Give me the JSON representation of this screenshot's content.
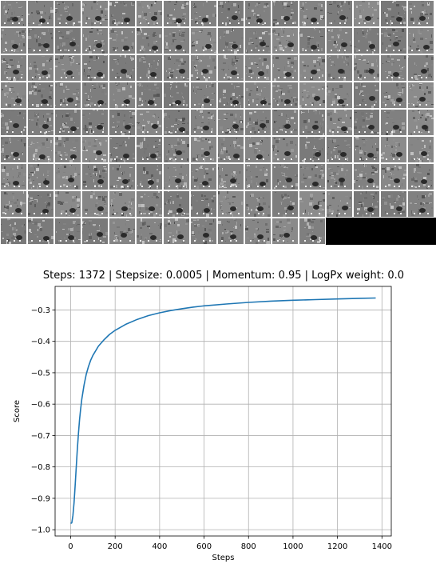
{
  "tile_grid": {
    "columns": 16,
    "rows": 9,
    "tile_count": 140,
    "tile_description": "grayscale textured image tiles"
  },
  "chart_data": {
    "type": "line",
    "title": "Steps: 1372 | Stepsize: 0.0005 | Momentum: 0.95 | LogPx weight: 0.0",
    "xlabel": "Steps",
    "ylabel": "Score",
    "xlim": [
      -70,
      1442
    ],
    "ylim": [
      -1.02,
      -0.225
    ],
    "x_ticks": [
      0,
      200,
      400,
      600,
      800,
      1000,
      1200,
      1400
    ],
    "y_ticks": [
      -1.0,
      -0.9,
      -0.8,
      -0.7,
      -0.6,
      -0.5,
      -0.4,
      -0.3
    ],
    "x_tick_labels": [
      "0",
      "200",
      "400",
      "600",
      "800",
      "1000",
      "1200",
      "1400"
    ],
    "y_tick_labels": [
      "−1.0",
      "−0.9",
      "−0.8",
      "−0.7",
      "−0.6",
      "−0.5",
      "−0.4",
      "−0.3"
    ],
    "grid": true,
    "series": [
      {
        "color": "#1f77b4",
        "x": [
          0,
          5,
          10,
          15,
          20,
          25,
          30,
          35,
          40,
          45,
          50,
          60,
          70,
          80,
          90,
          100,
          125,
          150,
          175,
          200,
          250,
          300,
          350,
          400,
          450,
          500,
          550,
          600,
          700,
          800,
          900,
          1000,
          1100,
          1200,
          1300,
          1372
        ],
        "y": [
          -0.98,
          -0.978,
          -0.955,
          -0.915,
          -0.86,
          -0.8,
          -0.745,
          -0.695,
          -0.65,
          -0.615,
          -0.585,
          -0.54,
          -0.505,
          -0.48,
          -0.46,
          -0.445,
          -0.415,
          -0.395,
          -0.378,
          -0.365,
          -0.345,
          -0.33,
          -0.318,
          -0.309,
          -0.302,
          -0.296,
          -0.291,
          -0.287,
          -0.281,
          -0.276,
          -0.272,
          -0.269,
          -0.267,
          -0.265,
          -0.263,
          -0.262
        ]
      }
    ]
  }
}
